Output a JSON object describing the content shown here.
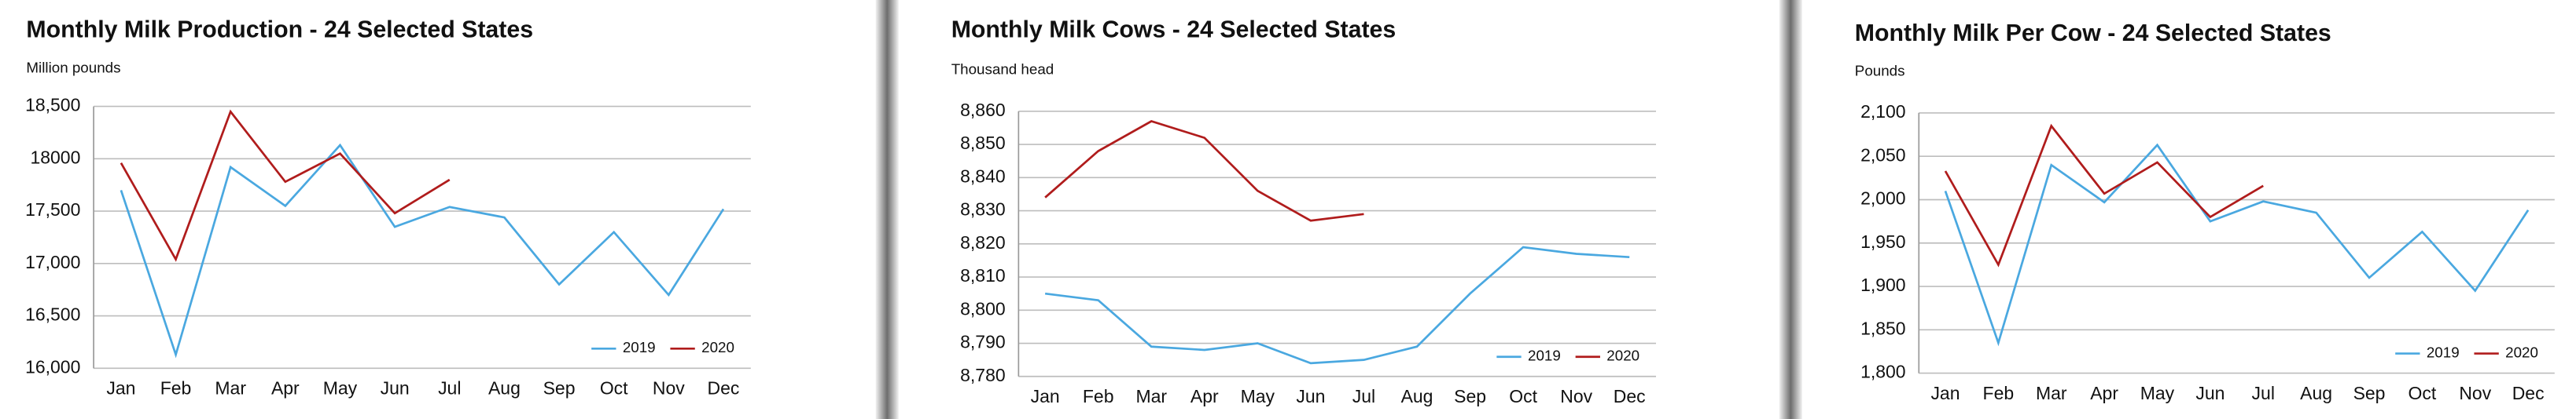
{
  "chart_data": [
    {
      "type": "line",
      "title": "Monthly Milk Production - 24 Selected States",
      "y_label": "Million pounds",
      "categories": [
        "Jan",
        "Feb",
        "Mar",
        "Apr",
        "May",
        "Jun",
        "Jul",
        "Aug",
        "Sep",
        "Oct",
        "Nov",
        "Dec"
      ],
      "series": [
        {
          "name": "2019",
          "color": "#4aa8e0",
          "values": [
            17700,
            16130,
            17920,
            17550,
            18130,
            17350,
            17540,
            17440,
            16800,
            17300,
            16700,
            17520
          ]
        },
        {
          "name": "2020",
          "color": "#b01c1c",
          "values": [
            17960,
            17040,
            18450,
            17780,
            18050,
            17480,
            17800,
            null,
            null,
            null,
            null,
            null
          ]
        }
      ],
      "ylim": [
        16000,
        18500
      ],
      "yticks": [
        {
          "value": 16000,
          "label": "16,000"
        },
        {
          "value": 16500,
          "label": "16,500"
        },
        {
          "value": 17000,
          "label": "17,000"
        },
        {
          "value": 17500,
          "label": "17,500"
        },
        {
          "value": 18000,
          "label": "18000"
        },
        {
          "value": 18500,
          "label": "18,500"
        }
      ],
      "grid": true,
      "legend": "lower right"
    },
    {
      "type": "line",
      "title": "Monthly Milk Cows - 24 Selected States",
      "y_label": "Thousand head",
      "categories": [
        "Jan",
        "Feb",
        "Mar",
        "Apr",
        "May",
        "Jun",
        "Jul",
        "Aug",
        "Sep",
        "Oct",
        "Nov",
        "Dec"
      ],
      "series": [
        {
          "name": "2019",
          "color": "#4aa8e0",
          "values": [
            8805,
            8803,
            8789,
            8788,
            8790,
            8784,
            8785,
            8789,
            8805,
            8819,
            8817,
            8816
          ]
        },
        {
          "name": "2020",
          "color": "#b01c1c",
          "values": [
            8834,
            8848,
            8857,
            8852,
            8836,
            8827,
            8829,
            null,
            null,
            null,
            null,
            null
          ]
        }
      ],
      "ylim": [
        8780,
        8860
      ],
      "yticks": [
        {
          "value": 8780,
          "label": "8,780"
        },
        {
          "value": 8790,
          "label": "8,790"
        },
        {
          "value": 8800,
          "label": "8,800"
        },
        {
          "value": 8810,
          "label": "8,810"
        },
        {
          "value": 8820,
          "label": "8,820"
        },
        {
          "value": 8830,
          "label": "8,830"
        },
        {
          "value": 8840,
          "label": "8,840"
        },
        {
          "value": 8850,
          "label": "8,850"
        },
        {
          "value": 8860,
          "label": "8,860"
        }
      ],
      "grid": true,
      "legend": "lower right"
    },
    {
      "type": "line",
      "title": "Monthly Milk Per Cow - 24 Selected States",
      "y_label": "Pounds",
      "categories": [
        "Jan",
        "Feb",
        "Mar",
        "Apr",
        "May",
        "Jun",
        "Jul",
        "Aug",
        "Sep",
        "Oct",
        "Nov",
        "Dec"
      ],
      "series": [
        {
          "name": "2019",
          "color": "#4aa8e0",
          "values": [
            2010,
            1835,
            2040,
            1997,
            2063,
            1975,
            1998,
            1985,
            1910,
            1963,
            1895,
            1988
          ]
        },
        {
          "name": "2020",
          "color": "#b01c1c",
          "values": [
            2033,
            1925,
            2085,
            2007,
            2043,
            1980,
            2016,
            null,
            null,
            null,
            null,
            null
          ]
        }
      ],
      "ylim": [
        1800,
        2100
      ],
      "yticks": [
        {
          "value": 1800,
          "label": "1,800"
        },
        {
          "value": 1850,
          "label": "1,850"
        },
        {
          "value": 1900,
          "label": "1,900"
        },
        {
          "value": 1950,
          "label": "1,950"
        },
        {
          "value": 2000,
          "label": "2,000"
        },
        {
          "value": 2050,
          "label": "2,050"
        },
        {
          "value": 2100,
          "label": "2,100"
        }
      ],
      "grid": true,
      "legend": "lower right"
    }
  ]
}
